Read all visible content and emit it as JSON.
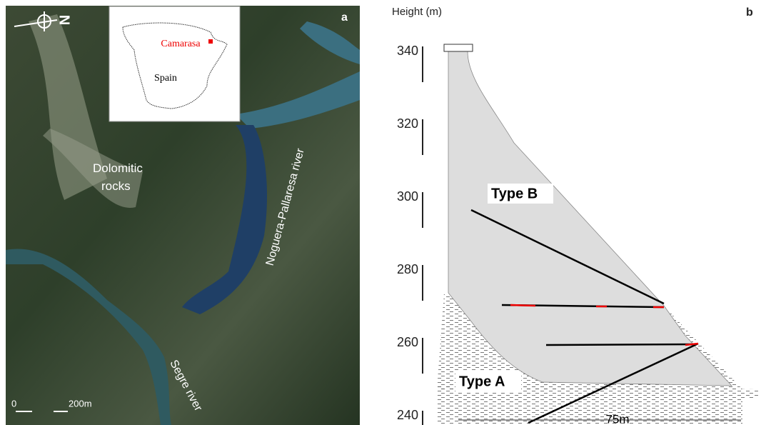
{
  "panel_a": {
    "label": "a",
    "compass": "N",
    "inset": {
      "place": "Camarasa",
      "country": "Spain"
    },
    "annotations": [
      "Dolomitic rocks",
      "Noguera-Pallaresa river",
      "Segre river"
    ],
    "scale_bar": {
      "start": "0",
      "end": "200m"
    }
  },
  "panel_b": {
    "label": "b",
    "axis_label": "Height (m)",
    "ticks": [
      340,
      320,
      300,
      280,
      260,
      240
    ],
    "types": [
      "Type B",
      "Type A"
    ],
    "dimension": "75m"
  }
}
